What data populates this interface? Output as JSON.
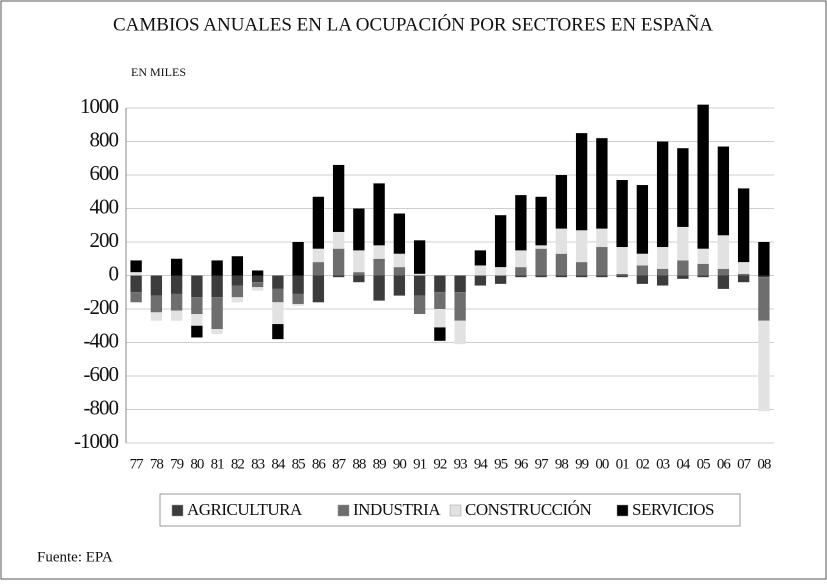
{
  "chart_data": {
    "type": "stacked_bar",
    "title": "CAMBIOS ANUALES EN LA OCUPACIÓN POR SECTORES EN ESPAÑA",
    "y_label": "EN MILES",
    "source": "Fuente: EPA",
    "categories": [
      "77",
      "78",
      "79",
      "80",
      "81",
      "82",
      "83",
      "84",
      "85",
      "86",
      "87",
      "88",
      "89",
      "90",
      "91",
      "92",
      "93",
      "94",
      "95",
      "96",
      "97",
      "98",
      "99",
      "00",
      "01",
      "02",
      "03",
      "04",
      "05",
      "06",
      "07",
      "08"
    ],
    "series": [
      {
        "name": "AGRICULTURA",
        "color": "#3c3c3c",
        "values": [
          -100,
          -120,
          -110,
          -130,
          -130,
          -60,
          -40,
          -80,
          -110,
          -160,
          -10,
          -40,
          -150,
          -120,
          -120,
          -100,
          -100,
          -60,
          -50,
          -10,
          -10,
          -10,
          -10,
          -10,
          -10,
          -50,
          -60,
          -20,
          -10,
          -80,
          -40,
          -10
        ]
      },
      {
        "name": "INDUSTRIA",
        "color": "#6e6e6e",
        "values": [
          -60,
          -100,
          -100,
          -100,
          -190,
          -70,
          -30,
          -80,
          -60,
          80,
          160,
          20,
          100,
          50,
          -110,
          -100,
          -170,
          0,
          0,
          50,
          160,
          130,
          80,
          170,
          10,
          60,
          40,
          90,
          70,
          40,
          10,
          -260
        ]
      },
      {
        "name": "CONSTRUCCIÓN",
        "color": "#e2e2e2",
        "values": [
          20,
          -50,
          -60,
          -70,
          -30,
          -30,
          -20,
          -130,
          -10,
          80,
          100,
          130,
          80,
          80,
          10,
          -110,
          -140,
          60,
          50,
          100,
          20,
          150,
          190,
          110,
          160,
          70,
          130,
          200,
          90,
          200,
          70,
          -540
        ]
      },
      {
        "name": "SERVICIOS",
        "color": "#000000",
        "values": [
          70,
          0,
          100,
          -70,
          90,
          115,
          30,
          -90,
          200,
          310,
          400,
          250,
          370,
          240,
          200,
          -80,
          0,
          90,
          310,
          330,
          290,
          320,
          580,
          540,
          400,
          410,
          630,
          470,
          860,
          530,
          440,
          200
        ]
      }
    ],
    "ylim": [
      -1000,
      1000
    ],
    "yticks": [
      1000,
      800,
      600,
      400,
      200,
      0,
      -200,
      -400,
      -600,
      -800,
      -1000
    ],
    "grid": true
  }
}
